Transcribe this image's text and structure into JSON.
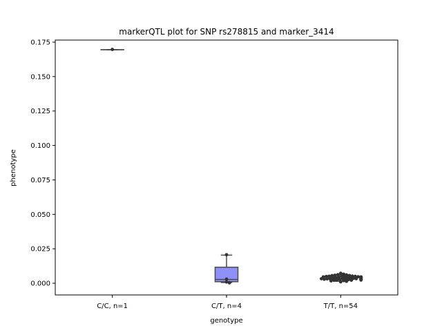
{
  "chart_data": {
    "type": "box",
    "title": "markerQTL plot for SNP rs278815 and marker_3414",
    "xlabel": "genotype",
    "ylabel": "phenotype",
    "ylim": [
      -0.0085,
      0.1765
    ],
    "yticks": [
      0.0,
      0.025,
      0.05,
      0.075,
      0.1,
      0.125,
      0.15,
      0.175
    ],
    "ytick_labels": [
      "0.000",
      "0.025",
      "0.050",
      "0.075",
      "0.100",
      "0.125",
      "0.150",
      "0.175"
    ],
    "categories": [
      "C/C, n=1",
      "C/T, n=4",
      "T/T, n=54"
    ],
    "boxes": [
      {
        "category": "C/C, n=1",
        "whisker_low": 0.1695,
        "q1": 0.1695,
        "median": 0.1695,
        "q3": 0.1695,
        "whisker_high": 0.1695
      },
      {
        "category": "C/T, n=4",
        "whisker_low": 0.0005,
        "q1": 0.0011,
        "median": 0.0027,
        "q3": 0.0116,
        "whisker_high": 0.0204
      },
      {
        "category": "T/T, n=54",
        "whisker_low": 0.0014,
        "q1": 0.0026,
        "median": 0.0035,
        "q3": 0.0045,
        "whisker_high": 0.006
      }
    ],
    "points": [
      {
        "category": "C/C, n=1",
        "values": [
          0.1697
        ]
      },
      {
        "category": "C/T, n=4",
        "values": [
          0.0207,
          0.003,
          0.0009,
          0.0003
        ]
      },
      {
        "category": "T/T, n=54",
        "values": [
          0.0072,
          0.0066,
          0.0062,
          0.006,
          0.0058,
          0.0056,
          0.0055,
          0.0054,
          0.0052,
          0.0051,
          0.005,
          0.0049,
          0.0048,
          0.0047,
          0.0046,
          0.0046,
          0.0045,
          0.0044,
          0.0043,
          0.0043,
          0.0042,
          0.0041,
          0.004,
          0.004,
          0.0039,
          0.0038,
          0.0038,
          0.0037,
          0.0036,
          0.0036,
          0.0035,
          0.0035,
          0.0034,
          0.0033,
          0.0033,
          0.0032,
          0.0031,
          0.0031,
          0.003,
          0.0029,
          0.0029,
          0.0028,
          0.0027,
          0.0027,
          0.0026,
          0.0025,
          0.0024,
          0.0023,
          0.0022,
          0.0021,
          0.0019,
          0.0017,
          0.0014,
          0.001
        ]
      }
    ],
    "colors": {
      "box_fill": "#8f8ff8",
      "box_edge": "#4a4a4a",
      "points": "#333333",
      "axes": "#000000",
      "background": "#ffffff"
    },
    "grid": false,
    "legend": "none"
  }
}
